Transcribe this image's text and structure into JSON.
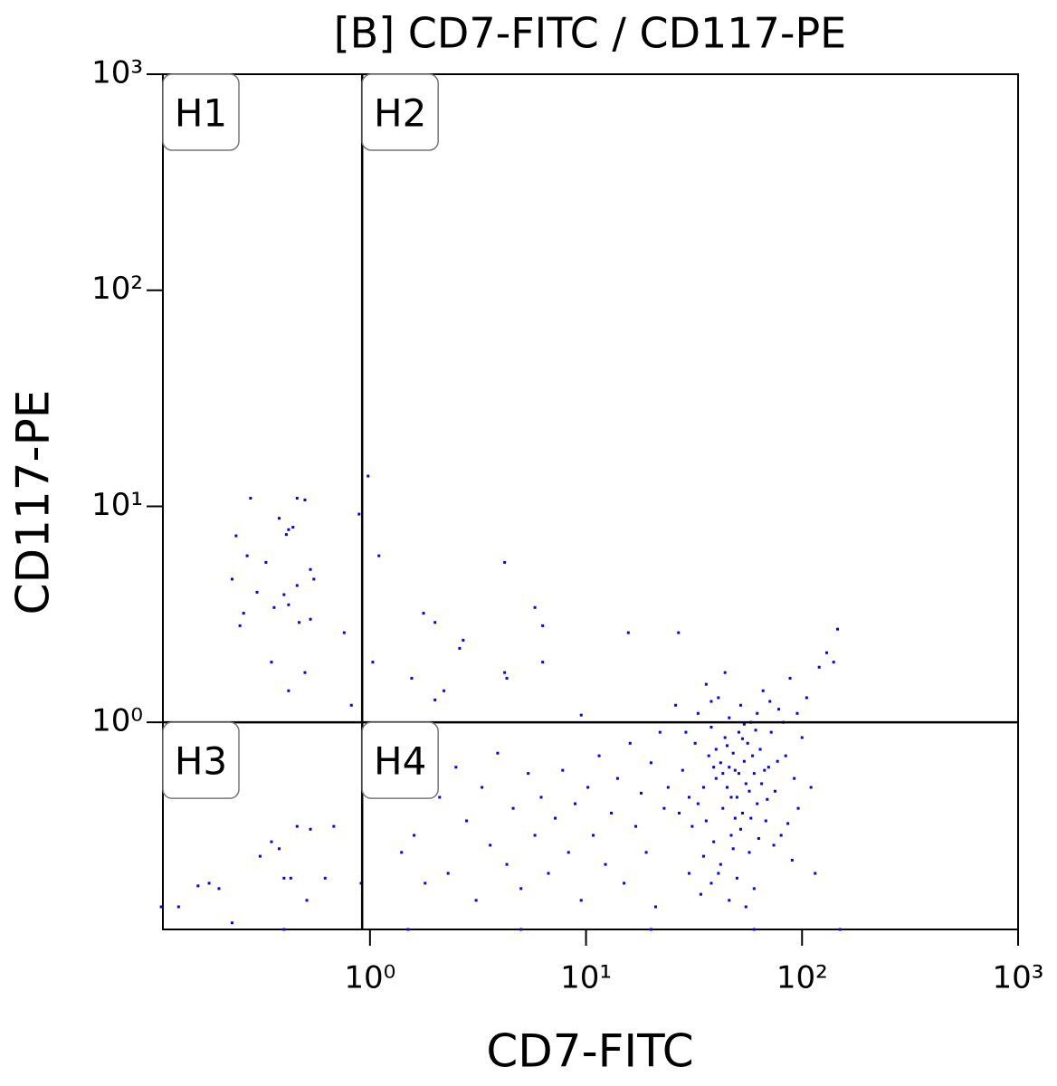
{
  "chart_data": {
    "type": "scatter",
    "title": "[B] CD7-FITC / CD117-PE",
    "x_label": "CD7-FITC",
    "y_label": "CD117-PE",
    "xscale": "log",
    "yscale": "log",
    "xlim": [
      0.11,
      1000
    ],
    "ylim": [
      0.11,
      1000
    ],
    "xticks": [
      {
        "value": 1,
        "label": "10⁰"
      },
      {
        "value": 10,
        "label": "10¹"
      },
      {
        "value": 100,
        "label": "10²"
      },
      {
        "value": 1000,
        "label": "10³"
      }
    ],
    "yticks": [
      {
        "value": 1,
        "label": "10⁰"
      },
      {
        "value": 10,
        "label": "10¹"
      },
      {
        "value": 100,
        "label": "10²"
      },
      {
        "value": 1000,
        "label": "10³"
      }
    ],
    "color": "#0000ff",
    "gates": {
      "x": 0.92,
      "y": 1,
      "labels": [
        "H1",
        "H2",
        "H3",
        "H4"
      ]
    },
    "x": [
      0.28,
      0.24,
      0.27,
      0.33,
      0.23,
      0.3,
      0.38,
      0.41,
      0.46,
      0.5,
      0.42,
      0.44,
      0.53,
      0.55,
      0.46,
      0.4,
      0.42,
      0.36,
      0.26,
      0.25,
      0.47,
      0.53,
      0.76,
      0.35,
      0.5,
      0.42,
      0.82,
      0.89,
      0.98,
      1.1,
      1.03,
      1.77,
      2.0,
      4.2,
      5.8,
      6.3,
      2.7,
      2.6,
      1.56,
      4.2,
      4.3,
      6.3,
      2.2,
      2.0,
      9.5,
      15.7,
      26.8,
      146,
      0.108,
      0.13,
      0.16,
      0.18,
      0.2,
      0.31,
      0.35,
      0.38,
      0.46,
      0.53,
      0.68,
      0.4,
      0.43,
      0.51,
      0.62,
      0.91,
      0.23,
      1.2,
      1.4,
      1.6,
      1.8,
      2.1,
      2.3,
      2.5,
      2.8,
      3.1,
      3.3,
      3.6,
      3.9,
      4.3,
      4.6,
      5.0,
      5.4,
      5.8,
      6.2,
      6.7,
      7.2,
      7.8,
      8.3,
      8.9,
      9.5,
      10.2,
      10.8,
      11.5,
      12.3,
      13.1,
      14,
      15,
      16,
      17,
      18,
      19,
      20,
      21,
      22,
      23,
      28,
      30,
      32,
      33,
      35,
      36,
      37,
      38,
      39,
      40,
      41,
      42,
      43,
      44,
      45,
      46,
      47,
      48,
      49,
      50,
      51,
      52,
      53,
      54,
      55,
      56,
      57,
      58,
      60,
      62,
      64,
      66,
      68,
      70,
      72,
      75,
      78,
      80,
      84,
      88,
      92,
      96,
      100,
      105,
      110,
      115,
      120,
      130,
      140,
      30,
      34,
      38,
      42,
      46,
      50,
      55,
      60,
      26,
      29,
      31,
      36,
      44,
      48,
      52,
      58,
      63,
      67,
      74,
      82,
      90,
      24,
      27,
      33,
      39,
      45,
      51,
      57,
      61,
      69,
      77,
      86,
      95,
      35,
      41,
      47,
      53,
      59,
      65,
      71,
      40,
      43,
      49,
      54,
      62,
      38,
      46,
      0.4,
      1.5,
      5,
      20,
      60,
      150
    ],
    "y": [
      10.9,
      7.3,
      5.9,
      5.5,
      4.6,
      4.0,
      8.8,
      7.4,
      10.9,
      10.7,
      7.8,
      8.0,
      5.1,
      4.6,
      4.3,
      3.9,
      3.5,
      3.4,
      3.2,
      2.8,
      2.9,
      3.0,
      2.6,
      1.9,
      1.7,
      1.4,
      1.2,
      9.2,
      13.8,
      5.9,
      1.9,
      3.2,
      2.9,
      5.5,
      3.4,
      2.8,
      2.4,
      2.2,
      1.6,
      1.7,
      1.6,
      1.9,
      1.4,
      1.27,
      1.08,
      2.6,
      2.6,
      2.7,
      0.14,
      0.14,
      0.175,
      0.18,
      0.17,
      0.24,
      0.28,
      0.26,
      0.33,
      0.32,
      0.33,
      0.19,
      0.19,
      0.15,
      0.19,
      0.18,
      0.118,
      0.55,
      0.25,
      0.3,
      0.18,
      0.45,
      0.2,
      0.62,
      0.35,
      0.15,
      0.5,
      0.27,
      0.72,
      0.22,
      0.4,
      0.17,
      0.58,
      0.3,
      0.45,
      0.2,
      0.36,
      0.6,
      0.25,
      0.42,
      0.15,
      0.5,
      0.3,
      0.7,
      0.22,
      0.38,
      0.55,
      0.18,
      0.8,
      0.33,
      0.47,
      0.25,
      0.65,
      0.14,
      0.9,
      0.4,
      0.6,
      0.45,
      0.8,
      1.1,
      0.5,
      0.35,
      0.7,
      0.95,
      0.28,
      0.55,
      1.3,
      0.65,
      0.4,
      0.85,
      0.5,
      1.05,
      0.3,
      0.72,
      0.6,
      0.45,
      0.9,
      1.2,
      0.38,
      0.66,
      0.52,
      0.8,
      0.25,
      1.0,
      0.58,
      0.42,
      0.75,
      1.4,
      0.35,
      0.62,
      0.9,
      0.48,
      1.15,
      0.3,
      0.7,
      1.6,
      0.55,
      0.4,
      0.85,
      1.3,
      0.5,
      0.2,
      1.8,
      2.1,
      1.9,
      0.2,
      0.16,
      0.18,
      0.22,
      0.15,
      0.19,
      0.14,
      0.17,
      1.2,
      0.9,
      0.33,
      1.5,
      1.7,
      0.26,
      0.32,
      0.36,
      0.29,
      0.6,
      0.27,
      1.0,
      0.23,
      0.5,
      0.38,
      0.42,
      0.62,
      0.78,
      0.58,
      0.48,
      0.92,
      0.44,
      0.66,
      0.34,
      1.1,
      0.24,
      0.2,
      0.45,
      0.84,
      0.7,
      0.52,
      1.25,
      0.75,
      0.58,
      0.36,
      0.98,
      1.1,
      1.25,
      0.62,
      0.11,
      0.11,
      0.11,
      0.11,
      0.11,
      0.11
    ]
  }
}
